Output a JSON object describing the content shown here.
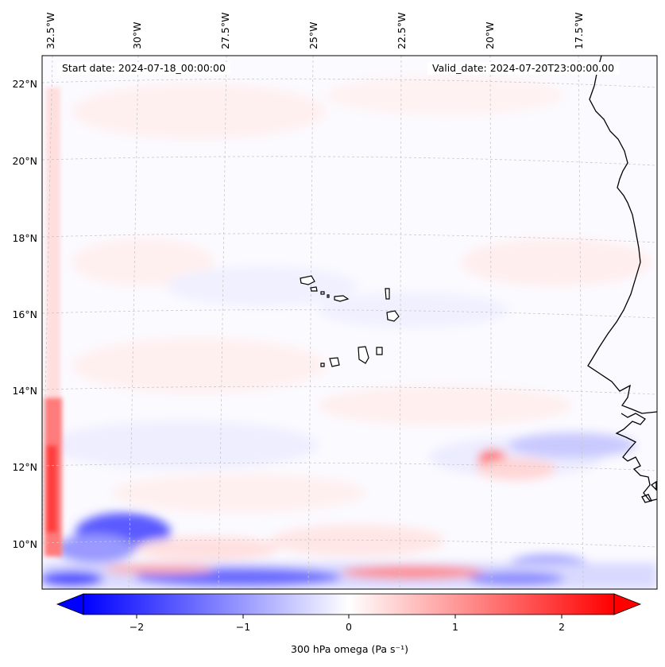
{
  "map": {
    "variable": "300 hPa omega",
    "start_label": "Start date: 2024-07-18_00:00:00",
    "valid_label": "Valid_date: 2024-07-20T23:00:00.00",
    "lon_ticks": [
      "32.5°W",
      "30°W",
      "27.5°W",
      "25°W",
      "22.5°W",
      "20°W",
      "17.5°W"
    ],
    "lat_ticks": [
      "22°N",
      "20°N",
      "18°N",
      "16°N",
      "14°N",
      "12°N",
      "10°N"
    ],
    "extent": {
      "lon_min": -32.8,
      "lon_max": -15.3,
      "lat_min": 8.9,
      "lat_max": 22.8
    },
    "features": [
      "Cape Verde islands",
      "West African coastline"
    ],
    "colormap": "bwr",
    "colorbar": {
      "label": "300 hPa omega (Pa s⁻¹)",
      "ticks": [
        "−2",
        "−1",
        "0",
        "1",
        "2"
      ],
      "range": [
        -2.5,
        2.5
      ],
      "extend": "both",
      "colors": {
        "min": "#0000ff",
        "mid": "#ffffff",
        "max": "#ff0000"
      }
    }
  }
}
